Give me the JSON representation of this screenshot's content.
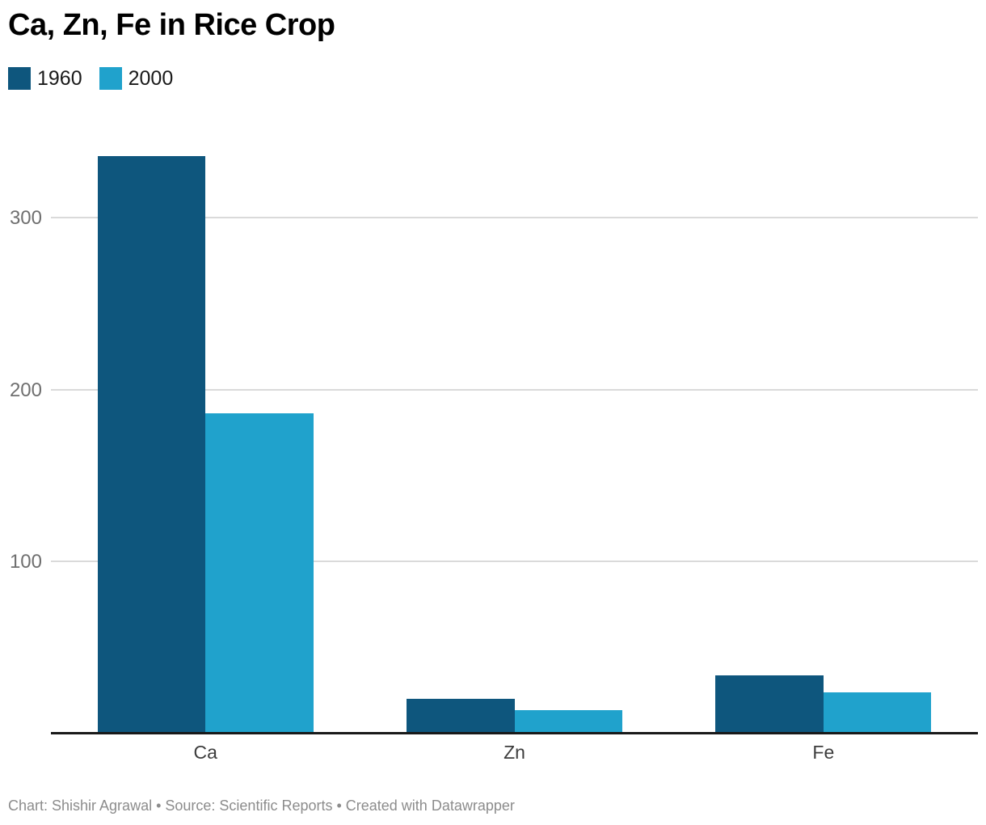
{
  "title": "Ca, Zn, Fe in Rice Crop",
  "legend": {
    "items": [
      {
        "label": "1960",
        "color": "#0e567d"
      },
      {
        "label": "2000",
        "color": "#20a2cc"
      }
    ]
  },
  "footer": "Chart: Shishir Agrawal • Source: Scientific Reports • Created with Datawrapper",
  "chart_data": {
    "type": "bar",
    "title": "Ca, Zn, Fe in Rice Crop",
    "categories": [
      "Ca",
      "Zn",
      "Fe"
    ],
    "series": [
      {
        "name": "1960",
        "color": "#0e567d",
        "values": [
          336,
          20,
          33.6
        ]
      },
      {
        "name": "2000",
        "color": "#20a2cc",
        "values": [
          186,
          13.2,
          23.6
        ]
      }
    ],
    "xlabel": "",
    "ylabel": "",
    "yticks": [
      100,
      200,
      300
    ],
    "ylim": [
      0,
      356.25
    ],
    "grid": true,
    "grid_color": "#dadada",
    "axis_color": "#191919",
    "legend_position": "top-left"
  }
}
